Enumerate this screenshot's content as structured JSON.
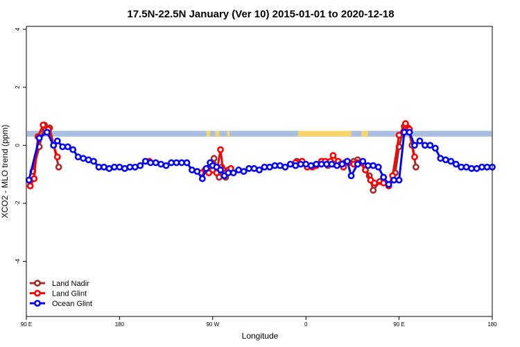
{
  "chart_data": {
    "type": "line",
    "title": "17.5N-22.5N January (Ver 10)   2015-01-01 to 2020-12-18",
    "xlabel": "Longitude",
    "ylabel": "XCO2 - MLO trend (ppm)",
    "xlim": [
      90,
      450
    ],
    "ylim": [
      -5.9,
      4.1
    ],
    "x_ticks": [
      {
        "value": 90,
        "label": "90 E"
      },
      {
        "value": 162,
        "label": "180"
      },
      {
        "value": 234,
        "label": "90 W"
      },
      {
        "value": 306,
        "label": "0"
      },
      {
        "value": 378,
        "label": "90 E"
      },
      {
        "value": 450,
        "label": "180"
      }
    ],
    "y_ticks": [
      {
        "value": 4,
        "label": "4"
      },
      {
        "value": 2,
        "label": "2"
      },
      {
        "value": 0,
        "label": "0"
      },
      {
        "value": -2,
        "label": "-2"
      },
      {
        "value": -4,
        "label": "-4"
      }
    ],
    "surface_band": {
      "y_range": [
        0.3,
        0.5
      ],
      "ocean_color": "#a8bfdf",
      "land_color": "#f7d56b",
      "land_segments": [
        [
          229,
          232
        ],
        [
          236,
          239
        ],
        [
          245,
          247
        ],
        [
          300,
          341
        ],
        [
          349,
          354
        ]
      ]
    },
    "series": [
      {
        "name": "Land Nadir",
        "color": "#a52a2a",
        "points": [
          [
            95,
            -0.9
          ],
          [
            100,
            -0.05
          ],
          [
            104,
            0.7
          ],
          [
            108,
            0.6
          ],
          [
            115,
            -0.75
          ],
          [
            229,
            -0.85
          ],
          [
            233,
            -0.8
          ],
          [
            235,
            -0.45
          ],
          [
            239,
            -1.1
          ],
          [
            241,
            -0.75
          ],
          [
            244,
            -1.1
          ],
          [
            246,
            -0.85
          ],
          [
            299,
            -0.55
          ],
          [
            323,
            -0.7
          ],
          [
            328,
            -0.65
          ],
          [
            336,
            -0.6
          ],
          [
            343,
            -0.55
          ],
          [
            346,
            -0.5
          ],
          [
            352,
            -0.85
          ],
          [
            355,
            -1.05
          ],
          [
            358,
            -1.55
          ],
          [
            363,
            -1.25
          ],
          [
            370,
            -1.35
          ],
          [
            375,
            -0.95
          ],
          [
            378,
            -0.05
          ],
          [
            382,
            0.65
          ],
          [
            385,
            0.6
          ],
          [
            388,
            0.0
          ],
          [
            391,
            -0.75
          ]
        ]
      },
      {
        "name": "Land Glint",
        "color": "#ff0000",
        "points": [
          [
            93,
            -1.4
          ],
          [
            96,
            -1.15
          ],
          [
            99,
            0.3
          ],
          [
            103,
            0.7
          ],
          [
            107,
            0.55
          ],
          [
            111,
            0.0
          ],
          [
            114,
            -0.4
          ],
          [
            185,
            -0.55
          ],
          [
            225,
            -0.95
          ],
          [
            228,
            -0.85
          ],
          [
            231,
            -0.95
          ],
          [
            234,
            -0.85
          ],
          [
            237,
            -0.95
          ],
          [
            240,
            -0.15
          ],
          [
            242,
            -0.85
          ],
          [
            244,
            -0.95
          ],
          [
            248,
            -0.8
          ],
          [
            298,
            -0.6
          ],
          [
            303,
            -0.55
          ],
          [
            307,
            -0.75
          ],
          [
            311,
            -0.75
          ],
          [
            314,
            -0.7
          ],
          [
            318,
            -0.55
          ],
          [
            321,
            -0.55
          ],
          [
            325,
            -0.55
          ],
          [
            327,
            -0.35
          ],
          [
            331,
            -0.55
          ],
          [
            333,
            -0.65
          ],
          [
            335,
            -0.75
          ],
          [
            339,
            -0.6
          ],
          [
            343,
            -0.65
          ],
          [
            346,
            -0.6
          ],
          [
            349,
            -0.6
          ],
          [
            352,
            -0.85
          ],
          [
            356,
            -1.2
          ],
          [
            359,
            -1.3
          ],
          [
            366,
            -1.3
          ],
          [
            370,
            -1.4
          ],
          [
            373,
            -1.05
          ],
          [
            378,
            0.35
          ],
          [
            383,
            0.75
          ],
          [
            386,
            0.55
          ],
          [
            390,
            -0.4
          ]
        ]
      },
      {
        "name": "Ocean Glint",
        "color": "#0000ff",
        "points": [
          [
            92,
            -1.2
          ],
          [
            100,
            0.25
          ],
          [
            106,
            0.45
          ],
          [
            111,
            0.0
          ],
          [
            114,
            0.15
          ],
          [
            118,
            -0.05
          ],
          [
            122,
            -0.05
          ],
          [
            126,
            -0.15
          ],
          [
            130,
            -0.4
          ],
          [
            134,
            -0.45
          ],
          [
            138,
            -0.5
          ],
          [
            142,
            -0.55
          ],
          [
            146,
            -0.75
          ],
          [
            150,
            -0.75
          ],
          [
            154,
            -0.8
          ],
          [
            158,
            -0.75
          ],
          [
            162,
            -0.75
          ],
          [
            166,
            -0.8
          ],
          [
            170,
            -0.75
          ],
          [
            174,
            -0.75
          ],
          [
            178,
            -0.7
          ],
          [
            182,
            -0.55
          ],
          [
            186,
            -0.6
          ],
          [
            190,
            -0.6
          ],
          [
            194,
            -0.65
          ],
          [
            198,
            -0.7
          ],
          [
            202,
            -0.6
          ],
          [
            206,
            -0.6
          ],
          [
            210,
            -0.6
          ],
          [
            214,
            -0.6
          ],
          [
            218,
            -0.85
          ],
          [
            222,
            -0.9
          ],
          [
            226,
            -1.15
          ],
          [
            229,
            -0.8
          ],
          [
            232,
            -0.6
          ],
          [
            234,
            -0.7
          ],
          [
            237,
            -0.75
          ],
          [
            240,
            -0.85
          ],
          [
            243,
            -1.05
          ],
          [
            246,
            -0.95
          ],
          [
            250,
            -0.95
          ],
          [
            254,
            -0.85
          ],
          [
            258,
            -0.9
          ],
          [
            262,
            -0.8
          ],
          [
            266,
            -0.8
          ],
          [
            270,
            -0.85
          ],
          [
            274,
            -0.75
          ],
          [
            278,
            -0.75
          ],
          [
            282,
            -0.7
          ],
          [
            286,
            -0.7
          ],
          [
            290,
            -0.75
          ],
          [
            294,
            -0.65
          ],
          [
            298,
            -0.7
          ],
          [
            302,
            -0.65
          ],
          [
            306,
            -0.65
          ],
          [
            310,
            -0.7
          ],
          [
            314,
            -0.65
          ],
          [
            318,
            -0.65
          ],
          [
            322,
            -0.65
          ],
          [
            326,
            -0.65
          ],
          [
            330,
            -0.7
          ],
          [
            334,
            -0.65
          ],
          [
            338,
            -0.55
          ],
          [
            341,
            -1.05
          ],
          [
            346,
            -0.65
          ],
          [
            350,
            -0.55
          ],
          [
            354,
            -0.7
          ],
          [
            358,
            -0.7
          ],
          [
            362,
            -0.75
          ],
          [
            366,
            -1.1
          ],
          [
            370,
            -1.35
          ],
          [
            374,
            -1.2
          ],
          [
            378,
            -1.2
          ],
          [
            382,
            0.45
          ],
          [
            386,
            0.45
          ],
          [
            390,
            0.0
          ],
          [
            394,
            0.15
          ],
          [
            398,
            0.0
          ],
          [
            402,
            0.0
          ],
          [
            406,
            -0.1
          ],
          [
            410,
            -0.45
          ],
          [
            414,
            -0.5
          ],
          [
            418,
            -0.55
          ],
          [
            422,
            -0.65
          ],
          [
            426,
            -0.75
          ],
          [
            430,
            -0.75
          ],
          [
            434,
            -0.8
          ],
          [
            438,
            -0.8
          ],
          [
            442,
            -0.75
          ],
          [
            446,
            -0.75
          ],
          [
            450,
            -0.75
          ]
        ]
      }
    ]
  }
}
